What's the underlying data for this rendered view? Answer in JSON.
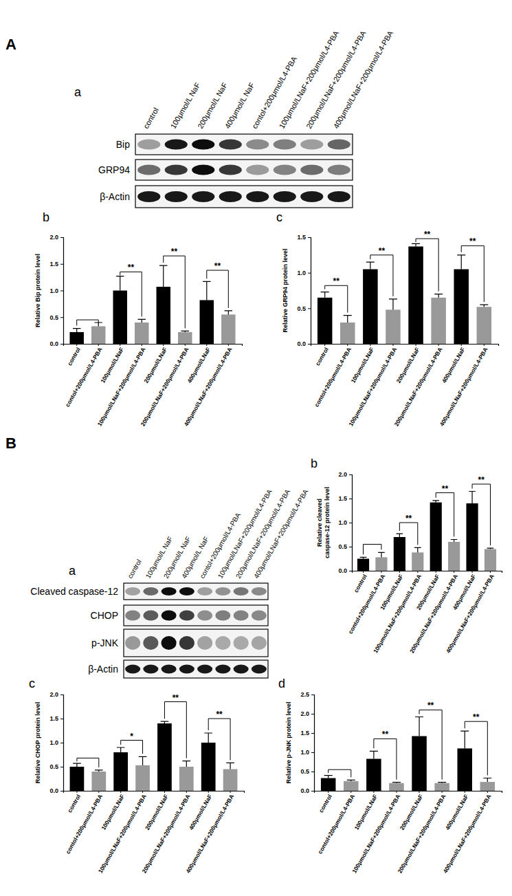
{
  "figure_labels": [
    "A",
    "B"
  ],
  "blots": [
    {
      "panel_label": "a",
      "lanes": [
        "control",
        "100μmol/L NaF",
        "200μmol/L NaF",
        "400μmol/L NaF",
        "contol+200μmol/L4-PBA",
        "100μmol/LNaF+200μmol/L4-PBA",
        "200μmol/LNaF+200μmol/L4-PBA",
        "400μmol/LNaF+200μmol/L4-PBA"
      ],
      "rows": [
        "Bip",
        "GRP94",
        "β-Actin"
      ]
    },
    {
      "panel_label": "a",
      "lanes": [
        "control",
        "100μmol/L NaF",
        "200μmol/L NaF",
        "400μmol/L NaF",
        "contol+200μmol/L4-PBA",
        "100μmol/LNaF+200μmol/L4-PBA",
        "200μmol/LNaF+200μmol/L4-PBA",
        "400μmol/LNaF+200μmol/L4-PBA"
      ],
      "rows": [
        "Cleaved caspase-12",
        "CHOP",
        "p-JNK",
        "β-Actin"
      ]
    }
  ],
  "chart_data": [
    {
      "type": "bar",
      "panel_label": "b",
      "y_label": "Relative Bip protein level",
      "categories": [
        "control",
        "contol+200μmol/L4-PBA",
        "100μmol/LNaF",
        "100μmol/LNaF+200μmol/L4-PBA",
        "200μmol/LNaF",
        "200μmol/LNaF+200μmol/L4-PBA",
        "400μmol/LNaF",
        "400μmol/LNaF+200μmol/L4-PBA"
      ],
      "values": [
        0.22,
        0.33,
        1.0,
        0.4,
        1.07,
        0.22,
        0.82,
        0.55
      ],
      "errors": [
        0.07,
        0.07,
        0.27,
        0.06,
        0.4,
        0.02,
        0.35,
        0.07
      ],
      "colors": [
        "#000000",
        "#999999",
        "#000000",
        "#999999",
        "#000000",
        "#999999",
        "#000000",
        "#999999"
      ],
      "brackets": [
        {
          "y": 0.45
        },
        {
          "y": 1.35,
          "text": "**"
        },
        {
          "y": 1.65,
          "text": "**"
        },
        {
          "y": 1.38,
          "text": "**"
        }
      ],
      "ylim": [
        0,
        2
      ],
      "yticks": [
        {
          "value": 0,
          "label": "0.0"
        },
        0.5,
        {
          "value": 1,
          "label": "1.0"
        },
        1.5,
        {
          "value": 2,
          "label": "2.0"
        }
      ]
    },
    {
      "type": "bar",
      "panel_label": "c",
      "y_label": "Relative GRP94 protein level",
      "categories": [
        "control",
        "contol+200μmol/L4-PBA",
        "100μmol/LNaF",
        "100μmol/LNaF+200μmol/L4-PBA",
        "200μmol/LNaF",
        "200μmol/LNaF+200μmol/L4-PBA",
        "400μmol/LNaF",
        "400μmol/LNaF+200μmol/L4-PBA"
      ],
      "values": [
        0.65,
        0.3,
        1.05,
        0.48,
        1.37,
        0.65,
        1.05,
        0.52
      ],
      "errors": [
        0.08,
        0.1,
        0.1,
        0.15,
        0.04,
        0.05,
        0.2,
        0.03
      ],
      "colors": [
        "#000000",
        "#999999",
        "#000000",
        "#999999",
        "#000000",
        "#999999",
        "#000000",
        "#999999"
      ],
      "brackets": [
        {
          "y": 0.82,
          "text": "**"
        },
        {
          "y": 1.25,
          "text": "**"
        },
        {
          "y": 1.48,
          "text": "**"
        },
        {
          "y": 1.38,
          "text": "**"
        }
      ],
      "ylim": [
        0,
        1.5
      ],
      "yticks": [
        {
          "value": 0,
          "label": "0.0"
        },
        0.5,
        {
          "value": 1,
          "label": "1.0"
        },
        1.5
      ]
    },
    {
      "type": "bar",
      "panel_label": "b",
      "y_label": "Relative cleaved caspase-12 protein level",
      "categories": [
        "control",
        "contol+200μmol/L4-PBA",
        "100μmol/LNaF",
        "100μmol/LNaF+200μmol/L4-PBA",
        "200μmol/LNaF",
        "200μmol/LNaF+200μmol/L4-PBA",
        "400μmol/LNaF",
        "400μmol/LNaF+200μmol/L4-PBA"
      ],
      "values": [
        0.25,
        0.28,
        0.7,
        0.38,
        1.42,
        0.6,
        1.4,
        0.45
      ],
      "errors": [
        0.03,
        0.1,
        0.07,
        0.1,
        0.04,
        0.05,
        0.25,
        0.02
      ],
      "colors": [
        "#000000",
        "#999999",
        "#000000",
        "#999999",
        "#000000",
        "#999999",
        "#000000",
        "#999999"
      ],
      "brackets": [
        {
          "y": 0.55
        },
        {
          "y": 1.0,
          "text": "**"
        },
        {
          "y": 1.62,
          "text": "**"
        },
        {
          "y": 1.8,
          "text": "**"
        }
      ],
      "ylim": [
        0,
        2
      ],
      "yticks": [
        {
          "value": 0,
          "label": "0.0"
        },
        0.5,
        {
          "value": 1,
          "label": "1.0"
        },
        1.5,
        {
          "value": 2,
          "label": "2.0"
        }
      ]
    },
    {
      "type": "bar",
      "panel_label": "c",
      "y_label": "Relative CHOP protein level",
      "categories": [
        "control",
        "contol+200μmol/L4-PBA",
        "100μmol/LNaF",
        "100μmol/LNaF+200μmol/L4-PBA",
        "200μmol/LNaF",
        "200μmol/LNaF+200μmol/L4-PBA",
        "400μmol/LNaF",
        "400μmol/LNaF+200μmol/L4-PBA"
      ],
      "values": [
        0.5,
        0.4,
        0.8,
        0.53,
        1.4,
        0.5,
        1.0,
        0.45
      ],
      "errors": [
        0.07,
        0.03,
        0.1,
        0.18,
        0.04,
        0.12,
        0.2,
        0.13
      ],
      "colors": [
        "#000000",
        "#999999",
        "#000000",
        "#999999",
        "#000000",
        "#999999",
        "#000000",
        "#999999"
      ],
      "brackets": [
        {
          "y": 0.68
        },
        {
          "y": 1.05,
          "text": "*"
        },
        {
          "y": 1.85,
          "text": "**"
        },
        {
          "y": 1.5,
          "text": "**"
        }
      ],
      "ylim": [
        0,
        2
      ],
      "yticks": [
        {
          "value": 0,
          "label": "0.0"
        },
        0.5,
        {
          "value": 1,
          "label": "1.0"
        },
        1.5,
        {
          "value": 2,
          "label": "2.0"
        }
      ]
    },
    {
      "type": "bar",
      "panel_label": "d",
      "y_label": "Relative p-JNK protein level",
      "categories": [
        "control",
        "contol+200μmol/L4-PBA",
        "100μmol/LNaF",
        "100μmol/LNaF+200μmol/L4-PBA",
        "200μmol/LNaF",
        "200μmol/LNaF+200μmol/L4-PBA",
        "400μmol/LNaF",
        "400μmol/LNaF+200μmol/L4-PBA"
      ],
      "values": [
        0.33,
        0.25,
        0.83,
        0.2,
        1.42,
        0.2,
        1.1,
        0.23
      ],
      "errors": [
        0.07,
        0.03,
        0.2,
        0.02,
        0.5,
        0.02,
        0.45,
        0.1
      ],
      "colors": [
        "#000000",
        "#999999",
        "#000000",
        "#999999",
        "#000000",
        "#999999",
        "#000000",
        "#999999"
      ],
      "brackets": [
        {
          "y": 0.55
        },
        {
          "y": 1.35,
          "text": "**"
        },
        {
          "y": 2.1,
          "text": "**"
        },
        {
          "y": 1.8,
          "text": "**"
        }
      ],
      "ylim": [
        0,
        2.5
      ],
      "yticks": [
        {
          "value": 0,
          "label": "0.0"
        },
        0.5,
        {
          "value": 1,
          "label": "1.0"
        },
        1.5,
        {
          "value": 2,
          "label": "2.0"
        },
        2.5
      ]
    }
  ]
}
